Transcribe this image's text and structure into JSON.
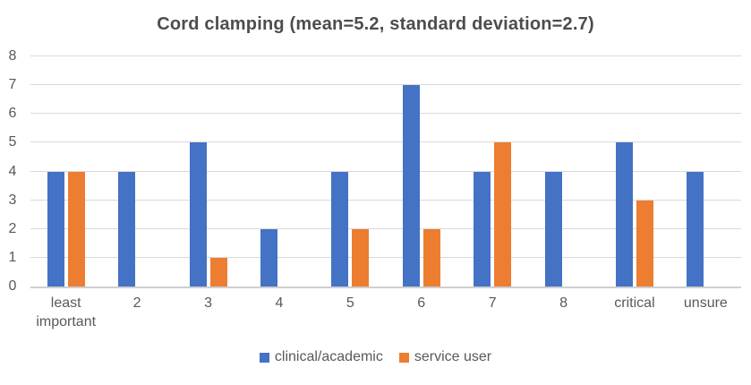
{
  "chart_data": {
    "type": "bar",
    "title": "Cord clamping (mean=5.2, standard deviation=2.7)",
    "categories": [
      "least important",
      "2",
      "3",
      "4",
      "5",
      "6",
      "7",
      "8",
      "critical",
      "unsure"
    ],
    "series": [
      {
        "name": "clinical/academic",
        "color": "#4472C4",
        "values": [
          4,
          4,
          5,
          2,
          4,
          7,
          4,
          4,
          5,
          4
        ]
      },
      {
        "name": "service user",
        "color": "#ED7D31",
        "values": [
          4,
          0,
          1,
          0,
          2,
          2,
          5,
          0,
          3,
          0
        ]
      }
    ],
    "ylim": [
      0,
      8
    ],
    "yticks": [
      0,
      1,
      2,
      3,
      4,
      5,
      6,
      7,
      8
    ],
    "xlabel": "",
    "ylabel": "",
    "grid": "horizontal",
    "legend_position": "bottom"
  },
  "colors": {
    "gridline": "#d9d9d9",
    "axis_line": "#cfcfcf",
    "tick_text": "#595959",
    "title_text": "#4d4d4d",
    "background": "#ffffff"
  }
}
